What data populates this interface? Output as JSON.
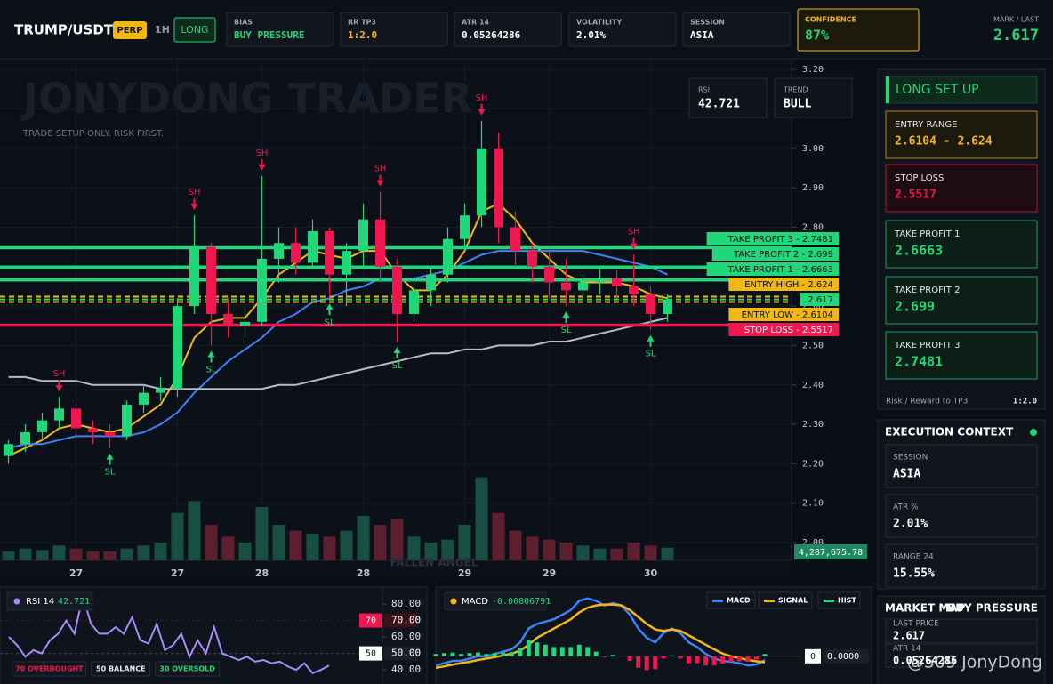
{
  "header": {
    "symbol": "TRUMP/USDT",
    "market": "PERP",
    "timeframe": "1H",
    "side": "LONG",
    "stats": [
      {
        "label": "BIAS",
        "value": "BUY PRESSURE"
      },
      {
        "label": "RR TP3",
        "value": "1:2.0"
      },
      {
        "label": "ATR 14",
        "value": "0.05264286"
      },
      {
        "label": "VOLATILITY",
        "value": "2.01%"
      },
      {
        "label": "SESSION",
        "value": "ASIA"
      },
      {
        "label": "CONFIDENCE",
        "value": "87%",
        "highlight": true
      }
    ],
    "mark_label": "MARK / LAST",
    "mark_value": "2.617"
  },
  "chart_data": [
    {
      "type": "candlestick",
      "watermark": "JONYDONG TRADER",
      "subtitle": "TRADE SETUP ONLY. RISK FIRST.",
      "footer_watermark": "FALLEN ANGEL",
      "ylim": [
        1.955,
        3.223
      ],
      "yticks": [
        {
          "value": 3.2,
          "label": "3.20"
        },
        {
          "value": 3.1,
          "label": "3.10"
        },
        {
          "value": 3.0,
          "label": "3.00"
        },
        {
          "value": 2.9,
          "label": "2.90"
        },
        {
          "value": 2.8,
          "label": "2.80"
        },
        {
          "value": 2.7,
          "label": "2.70"
        },
        {
          "value": 2.6,
          "label": "2.60"
        },
        {
          "value": 2.5,
          "label": "2.50"
        },
        {
          "value": 2.4,
          "label": "2.40"
        },
        {
          "value": 2.3,
          "label": "2.30"
        },
        {
          "value": 2.2,
          "label": "2.20"
        },
        {
          "value": 2.1,
          "label": "2.10"
        },
        {
          "value": 2.0,
          "label": "2.00"
        }
      ],
      "grid": true,
      "up_color": "#22d67a",
      "down_color": "#f0164f",
      "categories": [
        null,
        null,
        null,
        null,
        "27",
        null,
        null,
        null,
        null,
        null,
        "27",
        null,
        null,
        null,
        null,
        "28",
        null,
        null,
        null,
        null,
        null,
        "28",
        null,
        null,
        null,
        null,
        null,
        "29",
        null,
        null,
        null,
        null,
        "29",
        null,
        null,
        null,
        null,
        null,
        "30",
        null
      ],
      "candles": [
        [
          2.22,
          2.26,
          2.2,
          2.25
        ],
        [
          2.25,
          2.3,
          2.23,
          2.28
        ],
        [
          2.28,
          2.33,
          2.26,
          2.31
        ],
        [
          2.31,
          2.37,
          2.29,
          2.34
        ],
        [
          2.34,
          2.35,
          2.27,
          2.29
        ],
        [
          2.29,
          2.31,
          2.25,
          2.28
        ],
        [
          2.28,
          2.3,
          2.24,
          2.27
        ],
        [
          2.27,
          2.36,
          2.26,
          2.35
        ],
        [
          2.35,
          2.4,
          2.33,
          2.38
        ],
        [
          2.38,
          2.42,
          2.36,
          2.39
        ],
        [
          2.39,
          2.62,
          2.37,
          2.6
        ],
        [
          2.6,
          2.83,
          2.58,
          2.75
        ],
        [
          2.75,
          2.76,
          2.5,
          2.58
        ],
        [
          2.58,
          2.62,
          2.52,
          2.55
        ],
        [
          2.55,
          2.6,
          2.52,
          2.56
        ],
        [
          2.56,
          2.93,
          2.55,
          2.72
        ],
        [
          2.72,
          2.8,
          2.66,
          2.76
        ],
        [
          2.76,
          2.8,
          2.68,
          2.71
        ],
        [
          2.71,
          2.82,
          2.7,
          2.79
        ],
        [
          2.79,
          2.8,
          2.62,
          2.68
        ],
        [
          2.68,
          2.76,
          2.6,
          2.74
        ],
        [
          2.74,
          2.86,
          2.7,
          2.82
        ],
        [
          2.82,
          2.89,
          2.66,
          2.7
        ],
        [
          2.7,
          2.72,
          2.51,
          2.58
        ],
        [
          2.58,
          2.66,
          2.56,
          2.64
        ],
        [
          2.64,
          2.7,
          2.6,
          2.68
        ],
        [
          2.68,
          2.8,
          2.66,
          2.77
        ],
        [
          2.77,
          2.86,
          2.74,
          2.83
        ],
        [
          2.83,
          3.07,
          2.8,
          3.0
        ],
        [
          3.0,
          3.04,
          2.76,
          2.8
        ],
        [
          2.8,
          2.84,
          2.7,
          2.74
        ],
        [
          2.74,
          2.76,
          2.66,
          2.7
        ],
        [
          2.7,
          2.74,
          2.62,
          2.66
        ],
        [
          2.66,
          2.72,
          2.6,
          2.64
        ],
        [
          2.64,
          2.68,
          2.62,
          2.66
        ],
        [
          2.66,
          2.7,
          2.63,
          2.67
        ],
        [
          2.67,
          2.69,
          2.62,
          2.65
        ],
        [
          2.65,
          2.73,
          2.6,
          2.63
        ],
        [
          2.63,
          2.65,
          2.54,
          2.58
        ],
        [
          2.58,
          2.63,
          2.56,
          2.617
        ]
      ],
      "swings": [
        null,
        null,
        null,
        "SH",
        null,
        null,
        "SL",
        null,
        null,
        null,
        null,
        "SH",
        "SL",
        null,
        null,
        "SH",
        null,
        null,
        null,
        "SL",
        null,
        null,
        "SH",
        "SL",
        null,
        null,
        null,
        null,
        "SH",
        null,
        null,
        null,
        null,
        "SL",
        null,
        null,
        null,
        "SH",
        "SL",
        null
      ],
      "series": [
        {
          "color": "#f3b712",
          "values": [
            2.22,
            2.24,
            2.26,
            2.29,
            2.3,
            2.29,
            2.28,
            2.29,
            2.32,
            2.35,
            2.42,
            2.52,
            2.56,
            2.57,
            2.57,
            2.62,
            2.68,
            2.71,
            2.74,
            2.73,
            2.72,
            2.74,
            2.74,
            2.68,
            2.64,
            2.64,
            2.68,
            2.74,
            2.84,
            2.86,
            2.82,
            2.76,
            2.72,
            2.68,
            2.66,
            2.66,
            2.66,
            2.65,
            2.63,
            2.62
          ]
        },
        {
          "color": "#3b82f6",
          "values": [
            2.24,
            2.25,
            2.25,
            2.26,
            2.27,
            2.27,
            2.27,
            2.27,
            2.28,
            2.3,
            2.33,
            2.38,
            2.42,
            2.46,
            2.49,
            2.52,
            2.56,
            2.58,
            2.61,
            2.62,
            2.64,
            2.65,
            2.67,
            2.67,
            2.67,
            2.68,
            2.69,
            2.71,
            2.73,
            2.74,
            2.74,
            2.74,
            2.74,
            2.74,
            2.74,
            2.73,
            2.72,
            2.71,
            2.7,
            2.68
          ]
        },
        {
          "color": "#b8bcc4",
          "values": [
            2.42,
            2.42,
            2.41,
            2.41,
            2.41,
            2.4,
            2.4,
            2.4,
            2.4,
            2.39,
            2.39,
            2.39,
            2.39,
            2.39,
            2.39,
            2.39,
            2.4,
            2.4,
            2.41,
            2.42,
            2.43,
            2.44,
            2.45,
            2.46,
            2.47,
            2.48,
            2.48,
            2.49,
            2.49,
            2.5,
            2.5,
            2.5,
            2.51,
            2.51,
            2.52,
            2.53,
            2.54,
            2.55,
            2.56,
            2.57
          ]
        }
      ],
      "volume": {
        "ylim": [
          0,
          30000000
        ],
        "values": [
          3000000,
          4000000,
          3500000,
          5000000,
          4000000,
          3000000,
          3000000,
          4000000,
          5000000,
          6000000,
          16000000,
          20000000,
          12000000,
          8000000,
          6000000,
          18000000,
          12000000,
          10000000,
          9000000,
          8000000,
          10000000,
          15000000,
          12000000,
          14000000,
          8000000,
          6000000,
          7000000,
          12000000,
          28000000,
          16000000,
          10000000,
          8000000,
          7000000,
          6000000,
          5000000,
          4000000,
          4000000,
          6000000,
          5000000,
          4287675.78
        ],
        "last_value": 4287675.78,
        "last_label": "4,287,675.78"
      },
      "levels": [
        {
          "label": "TAKE PROFIT 3 - 2.7481",
          "value": 2.7481,
          "color": "#22d67a",
          "dashed": false
        },
        {
          "label": "TAKE PROFIT 2 - 2.699",
          "value": 2.699,
          "color": "#22d67a",
          "dashed": false
        },
        {
          "label": "TAKE PROFIT 1 - 2.6663",
          "value": 2.6663,
          "color": "#22d67a",
          "dashed": false
        },
        {
          "label": "ENTRY HIGH - 2.624",
          "value": 2.624,
          "color": "#f3b712",
          "dashed": true
        },
        {
          "label": "2.617",
          "value": 2.617,
          "color": "#22d67a",
          "dashed": true
        },
        {
          "label": "ENTRY LOW - 2.6104",
          "value": 2.6104,
          "color": "#f3b712",
          "dashed": true
        },
        {
          "label": "STOP LOSS - 2.5517",
          "value": 2.5517,
          "color": "#f0164f",
          "dashed": false
        }
      ],
      "indicators": [
        {
          "label": "RSI",
          "value": "42.721"
        },
        {
          "label": "TREND",
          "value": "BULL"
        }
      ]
    },
    {
      "type": "line",
      "title": "RSI 14",
      "current": 42.721,
      "ylim": [
        31.4,
        87.6
      ],
      "yticks": [
        {
          "value": 80,
          "label": "80.00"
        },
        {
          "value": 60,
          "label": "60.00"
        },
        {
          "value": 40,
          "label": "40.00"
        }
      ],
      "levels": [
        {
          "value": 70,
          "label": "70.00",
          "color": "#f0164f"
        },
        {
          "value": 50,
          "label": "50.00",
          "color": "#e6e8ec"
        }
      ],
      "legend": [
        {
          "label": "70 OVERBOUGHT",
          "color": "#f0164f"
        },
        {
          "label": "50 BALANCE",
          "color": "#e6e8ec"
        },
        {
          "label": "30 OVERSOLD",
          "color": "#22d67a"
        }
      ],
      "series": [
        {
          "color": "#a78bfa",
          "values": [
            60,
            55,
            48,
            52,
            50,
            58,
            62,
            70,
            62,
            85,
            68,
            62,
            62,
            66,
            62,
            72,
            58,
            56,
            68,
            52,
            55,
            62,
            48,
            58,
            50,
            66,
            50,
            48,
            46,
            48,
            45,
            46,
            44,
            45,
            42,
            40,
            44,
            38,
            40,
            42.721
          ]
        }
      ]
    },
    {
      "type": "macd",
      "title": "MACD",
      "current": -0.00806791,
      "ylim": [
        -0.06,
        0.14
      ],
      "zero": {
        "value": 0,
        "label": "0.0000"
      },
      "series": [
        {
          "name": "MACD",
          "color": "#3b82f6",
          "values": [
            -0.02,
            -0.015,
            -0.01,
            -0.01,
            -0.005,
            0,
            0,
            0.005,
            0.01,
            0.015,
            0.03,
            0.06,
            0.07,
            0.075,
            0.08,
            0.09,
            0.1,
            0.12,
            0.125,
            0.12,
            0.11,
            0.115,
            0.11,
            0.09,
            0.06,
            0.04,
            0.03,
            0.05,
            0.06,
            0.05,
            0.03,
            0.02,
            0.005,
            -0.005,
            -0.01,
            -0.012,
            -0.015,
            -0.02,
            -0.018,
            -0.00806791
          ]
        },
        {
          "name": "SIGNAL",
          "color": "#f3b712",
          "values": [
            -0.025,
            -0.022,
            -0.018,
            -0.015,
            -0.012,
            -0.008,
            -0.005,
            -0.002,
            0.002,
            0.006,
            0.012,
            0.025,
            0.04,
            0.05,
            0.06,
            0.07,
            0.08,
            0.095,
            0.105,
            0.11,
            0.112,
            0.112,
            0.11,
            0.1,
            0.085,
            0.07,
            0.058,
            0.055,
            0.058,
            0.055,
            0.045,
            0.035,
            0.025,
            0.015,
            0.006,
            0,
            -0.004,
            -0.008,
            -0.011,
            -0.013
          ]
        },
        {
          "name": "HIST",
          "color": "#22d67a",
          "negative_color": "#f0164f",
          "bars": true,
          "values": [
            0.005,
            0.007,
            0.008,
            0.005,
            0.007,
            0.008,
            0.005,
            0.007,
            0.008,
            0.009,
            0.018,
            0.035,
            0.03,
            0.025,
            0.02,
            0.02,
            0.02,
            0.025,
            0.02,
            0.01,
            -0.002,
            0.003,
            0,
            -0.01,
            -0.025,
            -0.03,
            -0.028,
            -0.005,
            0.002,
            -0.005,
            -0.015,
            -0.015,
            -0.02,
            -0.02,
            -0.016,
            -0.012,
            -0.011,
            -0.012,
            -0.007,
            0.005
          ]
        }
      ]
    }
  ],
  "setup": {
    "title": "LONG SET UP",
    "cards": [
      {
        "label": "ENTRY RANGE",
        "value": "2.6104 - 2.624",
        "color": "#f3b712"
      },
      {
        "label": "STOP LOSS",
        "value": "2.5517",
        "color": "#f0164f"
      },
      {
        "label": "TAKE PROFIT 1",
        "value": "2.6663",
        "color": "#22d67a"
      },
      {
        "label": "TAKE PROFIT 2",
        "value": "2.699",
        "color": "#22d67a"
      },
      {
        "label": "TAKE PROFIT 3",
        "value": "2.7481",
        "color": "#22d67a"
      }
    ],
    "rr_label": "Risk / Reward to TP3",
    "rr_value": "1:2.0"
  },
  "context": {
    "title": "EXECUTION CONTEXT",
    "items": [
      {
        "label": "SESSION",
        "value": "ASIA"
      },
      {
        "label": "ATR %",
        "value": "2.01%"
      },
      {
        "label": "RANGE 24",
        "value": "15.55%"
      }
    ]
  },
  "market_map": {
    "title": "MARKET MAP",
    "bias": "BUY PRESSURE",
    "items": [
      {
        "label": "LAST PRICE",
        "value": "2.617"
      },
      {
        "label": "ATR 14",
        "value": "0.05264286"
      }
    ]
  },
  "watermark": "@509 JonyDong"
}
